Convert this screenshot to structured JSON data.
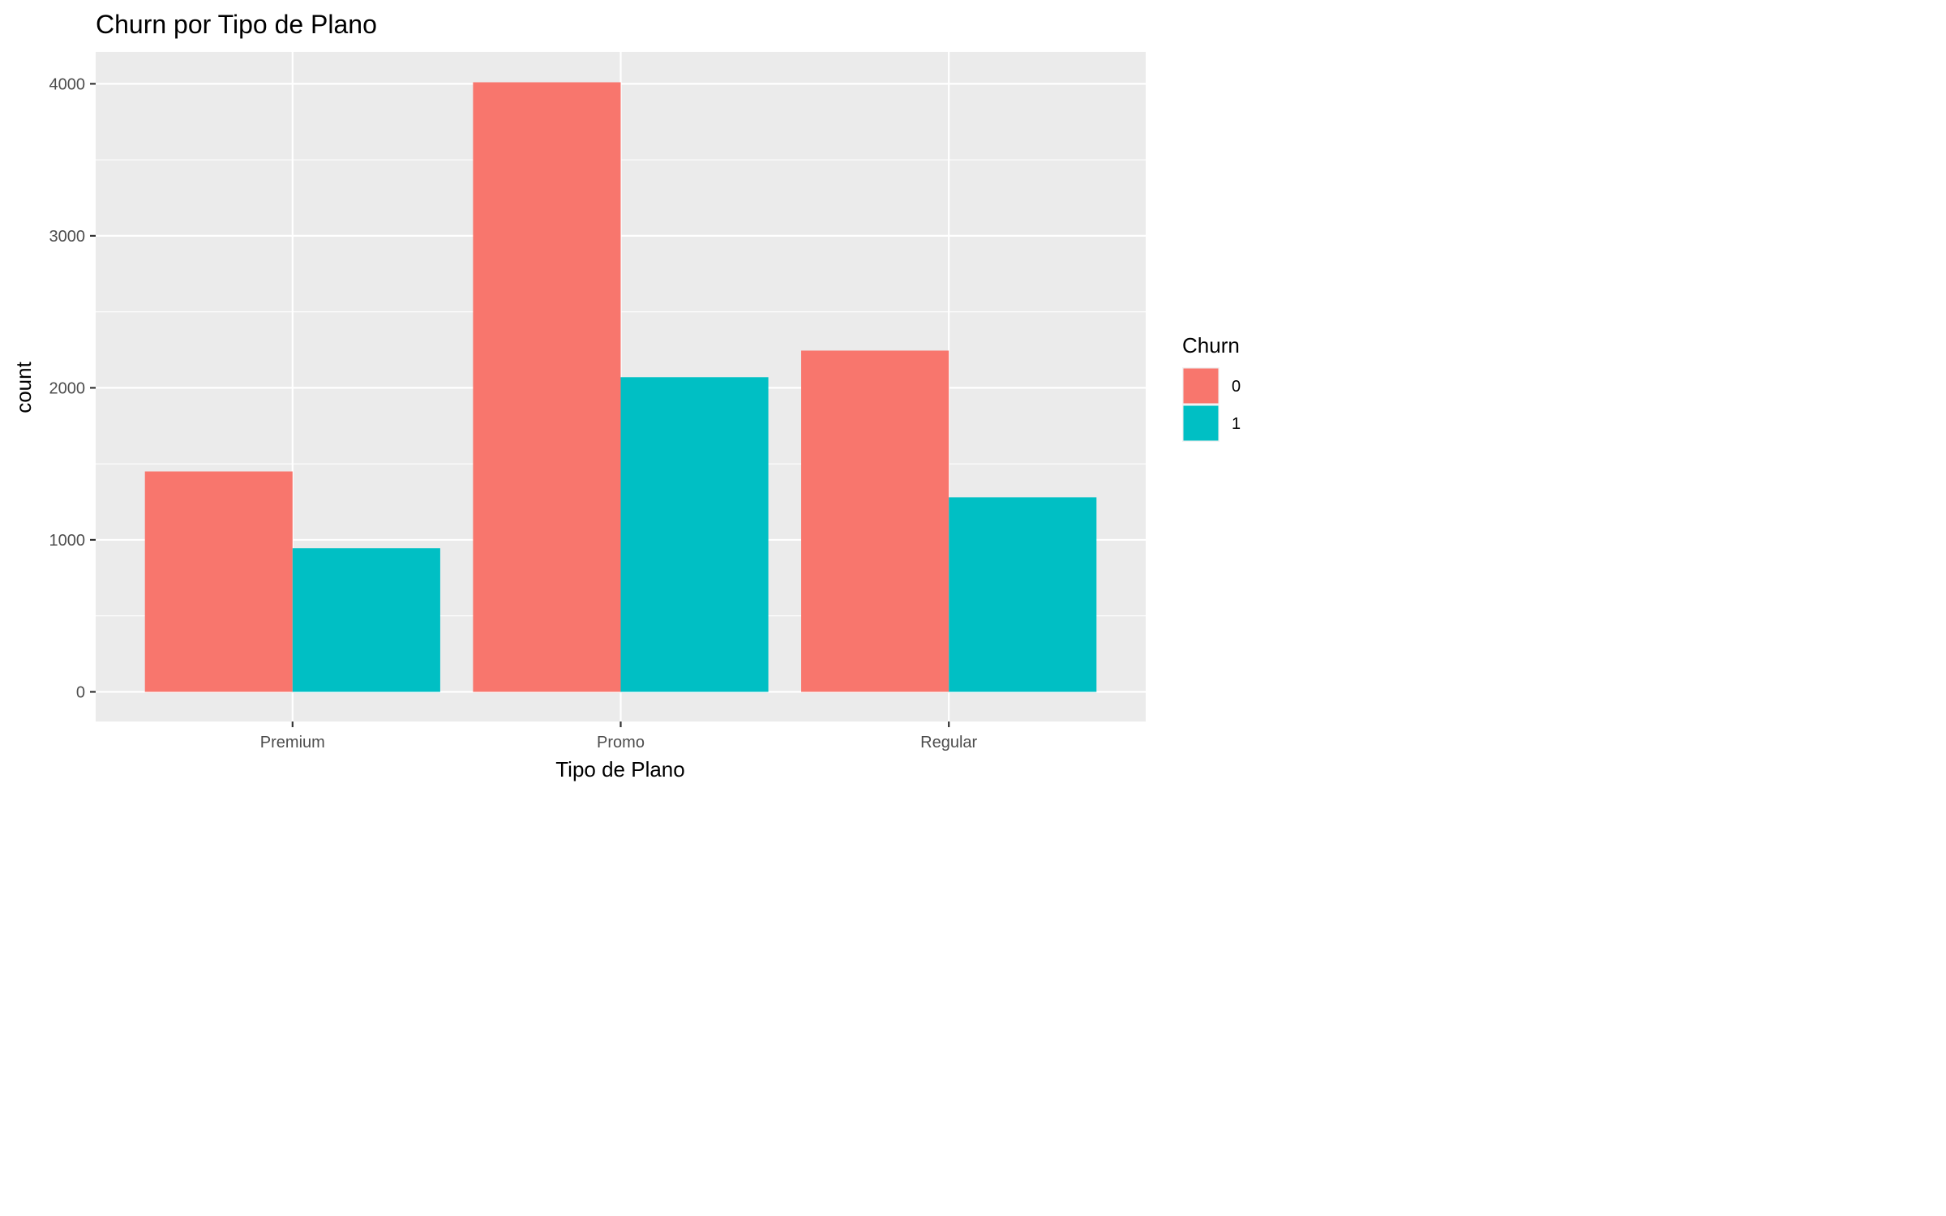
{
  "chart_data": {
    "type": "bar",
    "title": "Churn por Tipo de Plano",
    "xlabel": "Tipo de Plano",
    "ylabel": "count",
    "categories": [
      "Premium",
      "Promo",
      "Regular"
    ],
    "series": [
      {
        "name": "0",
        "color": "#F8766D",
        "values": [
          1450,
          4010,
          2245
        ]
      },
      {
        "name": "1",
        "color": "#00BFC4",
        "values": [
          945,
          2070,
          1280
        ]
      }
    ],
    "ylim": [
      -195,
      4210
    ],
    "yticks": [
      0,
      1000,
      2000,
      3000,
      4000
    ],
    "grid": true,
    "legend": {
      "title": "Churn",
      "position": "right"
    }
  }
}
